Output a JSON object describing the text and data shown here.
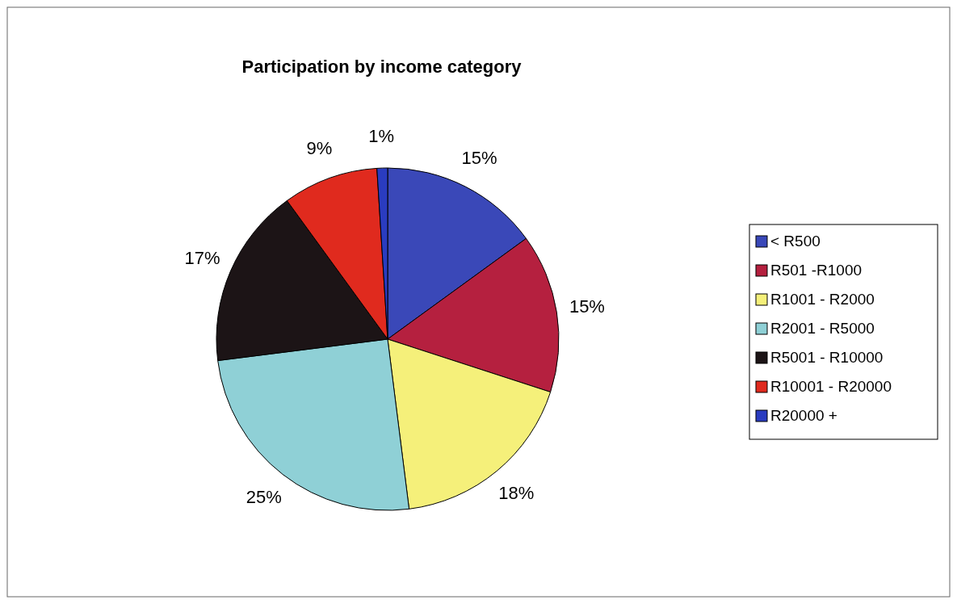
{
  "chart_data": {
    "type": "pie",
    "title": "Participation by income category",
    "categories": [
      "< R500",
      "R501 -R1000",
      "R1001 - R2000",
      "R2001 - R5000",
      "R5001 - R10000",
      "R10001 - R20000",
      "R20000 +"
    ],
    "values": [
      15,
      15,
      18,
      25,
      17,
      9,
      1
    ],
    "value_labels": [
      "15%",
      "15%",
      "18%",
      "25%",
      "17%",
      "9%",
      "1%"
    ],
    "colors": [
      "#3a48b8",
      "#b5203f",
      "#f5f07a",
      "#8fd0d6",
      "#1c1416",
      "#e02a1e",
      "#2a3cc0"
    ],
    "legend": "right"
  }
}
